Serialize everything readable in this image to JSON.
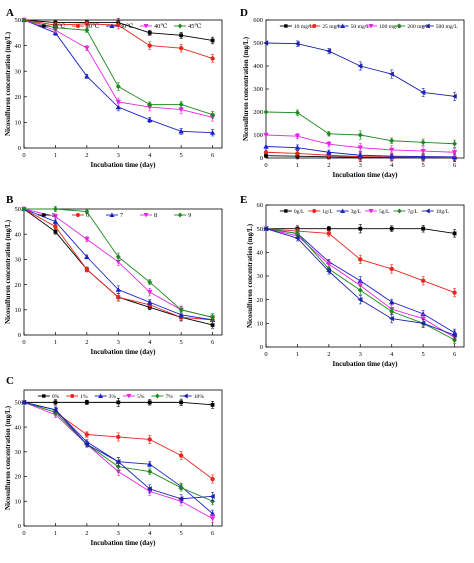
{
  "chart_data": [
    {
      "panel": "A",
      "type": "line",
      "xlabel": "Incubation time (day)",
      "ylabel": "Nicosulfuron concentration (mg/L)",
      "xlim": [
        0,
        6.3
      ],
      "ylim": [
        0,
        50
      ],
      "xticks": [
        0,
        1,
        2,
        3,
        4,
        5,
        6
      ],
      "yticks": [
        0,
        10,
        20,
        30,
        40,
        50
      ],
      "legend_position": "top",
      "x": [
        0,
        1,
        2,
        3,
        4,
        5,
        6
      ],
      "series": [
        {
          "name": "15℃",
          "color": "#000000",
          "marker": "square",
          "values": [
            50,
            49,
            49,
            49,
            45,
            44,
            42
          ]
        },
        {
          "name": "20℃",
          "color": "#e8271f",
          "marker": "circle",
          "values": [
            50,
            48,
            48.5,
            48,
            40,
            39,
            35
          ]
        },
        {
          "name": "30℃",
          "color": "#1a22c8",
          "marker": "triangle-up",
          "values": [
            50,
            45,
            28,
            16,
            11,
            6.5,
            6
          ]
        },
        {
          "name": "40℃",
          "color": "#e627e6",
          "marker": "triangle-down",
          "values": [
            50,
            46,
            39,
            18,
            16,
            15,
            12
          ]
        },
        {
          "name": "45℃",
          "color": "#1e8a1e",
          "marker": "diamond",
          "values": [
            50,
            47,
            46,
            24,
            17,
            17,
            13
          ]
        }
      ]
    },
    {
      "panel": "B",
      "type": "line",
      "xlabel": "Incubation time (day)",
      "ylabel": "Nicosulfuron concentration (mg/L)",
      "xlim": [
        0,
        6.3
      ],
      "ylim": [
        0,
        50
      ],
      "xticks": [
        0,
        1,
        2,
        3,
        4,
        5,
        6
      ],
      "yticks": [
        0,
        10,
        20,
        30,
        40,
        50
      ],
      "legend_position": "top",
      "x": [
        0,
        1,
        2,
        3,
        4,
        5,
        6
      ],
      "series": [
        {
          "name": "5",
          "color": "#000000",
          "marker": "square",
          "values": [
            50,
            41,
            26,
            15,
            11,
            7,
            4
          ]
        },
        {
          "name": "6",
          "color": "#e8271f",
          "marker": "circle",
          "values": [
            50,
            43,
            26,
            15,
            12,
            7,
            6
          ]
        },
        {
          "name": "7",
          "color": "#1a22c8",
          "marker": "triangle-up",
          "values": [
            50,
            45,
            31,
            18,
            13,
            8,
            6
          ]
        },
        {
          "name": "8",
          "color": "#e627e6",
          "marker": "triangle-down",
          "values": [
            50,
            47,
            38,
            29,
            17,
            10,
            7
          ]
        },
        {
          "name": "9",
          "color": "#1e8a1e",
          "marker": "diamond",
          "values": [
            50,
            50,
            49,
            31,
            21,
            10,
            7
          ]
        }
      ]
    },
    {
      "panel": "C",
      "type": "line",
      "xlabel": "Incubation time (day)",
      "ylabel": "Nicosulfuron concentration (mg/L)",
      "xlim": [
        0,
        6.3
      ],
      "ylim": [
        0,
        55
      ],
      "xticks": [
        0,
        1,
        2,
        3,
        4,
        5,
        6
      ],
      "yticks": [
        0,
        10,
        20,
        30,
        40,
        50
      ],
      "legend_position": "top",
      "x": [
        0,
        1,
        2,
        3,
        4,
        5,
        6
      ],
      "series": [
        {
          "name": "0%",
          "color": "#000000",
          "marker": "square",
          "values": [
            50,
            50,
            50,
            50,
            50,
            50,
            49
          ]
        },
        {
          "name": "1%",
          "color": "#e8271f",
          "marker": "circle",
          "values": [
            50,
            46,
            37,
            36,
            35,
            28.5,
            19
          ]
        },
        {
          "name": "3%",
          "color": "#1a22c8",
          "marker": "triangle-up",
          "values": [
            50,
            47,
            34,
            26,
            25,
            16,
            5
          ]
        },
        {
          "name": "5%",
          "color": "#e627e6",
          "marker": "triangle-down",
          "values": [
            50,
            45,
            33,
            22,
            14,
            10,
            3
          ]
        },
        {
          "name": "7%",
          "color": "#1e8a1e",
          "marker": "diamond",
          "values": [
            50,
            46,
            33,
            24,
            22,
            15.5,
            10
          ]
        },
        {
          "name": "10%",
          "color": "#1a22a8",
          "marker": "triangle-left",
          "values": [
            50,
            47,
            33,
            26,
            15,
            11,
            12
          ]
        }
      ]
    },
    {
      "panel": "D",
      "type": "line",
      "xlabel": "Incubation time (day)",
      "ylabel": "Nicosulfuron concentration (mg/L)",
      "xlim": [
        0,
        6.3
      ],
      "ylim": [
        0,
        600
      ],
      "xticks": [
        0,
        1,
        2,
        3,
        4,
        5,
        6
      ],
      "yticks": [
        0,
        100,
        200,
        300,
        400,
        500,
        600
      ],
      "legend_position": "top",
      "x": [
        0,
        1,
        2,
        3,
        4,
        5,
        6
      ],
      "series": [
        {
          "name": "10 mg/L",
          "color": "#000000",
          "marker": "square",
          "values": [
            10,
            8,
            5,
            3,
            2,
            2,
            1
          ]
        },
        {
          "name": "25 mg/L",
          "color": "#e8271f",
          "marker": "circle",
          "values": [
            25,
            20,
            12,
            6,
            4,
            3,
            2
          ]
        },
        {
          "name": "50 mg/L",
          "color": "#1a22c8",
          "marker": "triangle-up",
          "values": [
            50,
            45,
            25,
            12,
            8,
            6,
            5
          ]
        },
        {
          "name": "100 mg/L",
          "color": "#e627e6",
          "marker": "triangle-down",
          "values": [
            100,
            95,
            60,
            45,
            35,
            30,
            25
          ]
        },
        {
          "name": "200 mg/L",
          "color": "#1e8a1e",
          "marker": "diamond",
          "values": [
            200,
            197,
            105,
            100,
            75,
            68,
            62
          ]
        },
        {
          "name": "500 mg/L",
          "color": "#1a22a8",
          "marker": "triangle-left",
          "values": [
            500,
            497,
            465,
            400,
            365,
            285,
            268
          ]
        }
      ]
    },
    {
      "panel": "E",
      "type": "line",
      "xlabel": "Incubation time (day)",
      "ylabel": "Nicosulfuron concentration (mg/L)",
      "xlim": [
        0,
        6.3
      ],
      "ylim": [
        0,
        60
      ],
      "xticks": [
        0,
        1,
        2,
        3,
        4,
        5,
        6
      ],
      "yticks": [
        0,
        10,
        20,
        30,
        40,
        50,
        60
      ],
      "legend_position": "top",
      "x": [
        0,
        1,
        2,
        3,
        4,
        5,
        6
      ],
      "series": [
        {
          "name": "0g/L",
          "color": "#000000",
          "marker": "square",
          "values": [
            50,
            50,
            50,
            50,
            50,
            50,
            48
          ]
        },
        {
          "name": "1g/L",
          "color": "#e8271f",
          "marker": "circle",
          "values": [
            50,
            49,
            48,
            37,
            33,
            28,
            23
          ]
        },
        {
          "name": "3g/L",
          "color": "#1a22c8",
          "marker": "triangle-up",
          "values": [
            50,
            48,
            36,
            28,
            19,
            14,
            6
          ]
        },
        {
          "name": "5g/L",
          "color": "#e627e6",
          "marker": "triangle-down",
          "values": [
            50,
            47,
            35,
            26,
            16,
            12,
            4
          ]
        },
        {
          "name": "7g/L",
          "color": "#1e8a1e",
          "marker": "diamond",
          "values": [
            50,
            48,
            33,
            24,
            15,
            10,
            3
          ]
        },
        {
          "name": "10g/L",
          "color": "#1a22a8",
          "marker": "triangle-left",
          "values": [
            50,
            46,
            32,
            20,
            12,
            10,
            5
          ]
        }
      ]
    }
  ]
}
